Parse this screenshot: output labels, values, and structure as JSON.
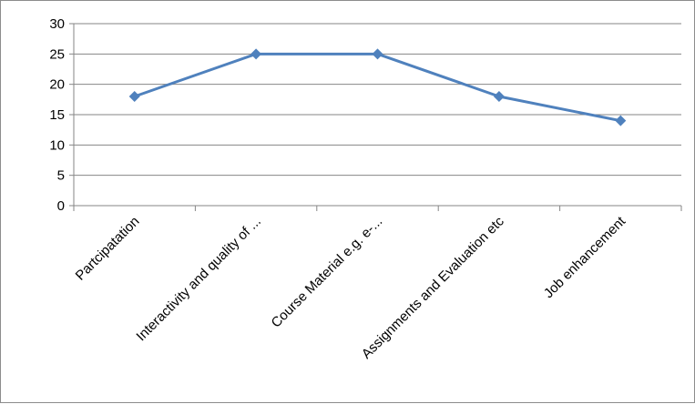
{
  "chart_data": {
    "type": "line",
    "title": "",
    "xlabel": "",
    "ylabel": "",
    "categories": [
      "Partcipatation",
      "Interactivity and quality of ...",
      "Course Material e.g. e-...",
      "Assignments and Evaluation etc",
      "Job enhancement"
    ],
    "series": [
      {
        "values": [
          18,
          25,
          25,
          18,
          14
        ],
        "color": "#4f81bd",
        "marker": "diamond"
      }
    ],
    "ylim": [
      0,
      30
    ],
    "yticks": [
      0,
      5,
      10,
      15,
      20,
      25,
      30
    ],
    "grid": "horizontal",
    "legend": "none",
    "colors": {
      "line": "#4f81bd",
      "grid": "#868686",
      "axis": "#868686"
    }
  }
}
